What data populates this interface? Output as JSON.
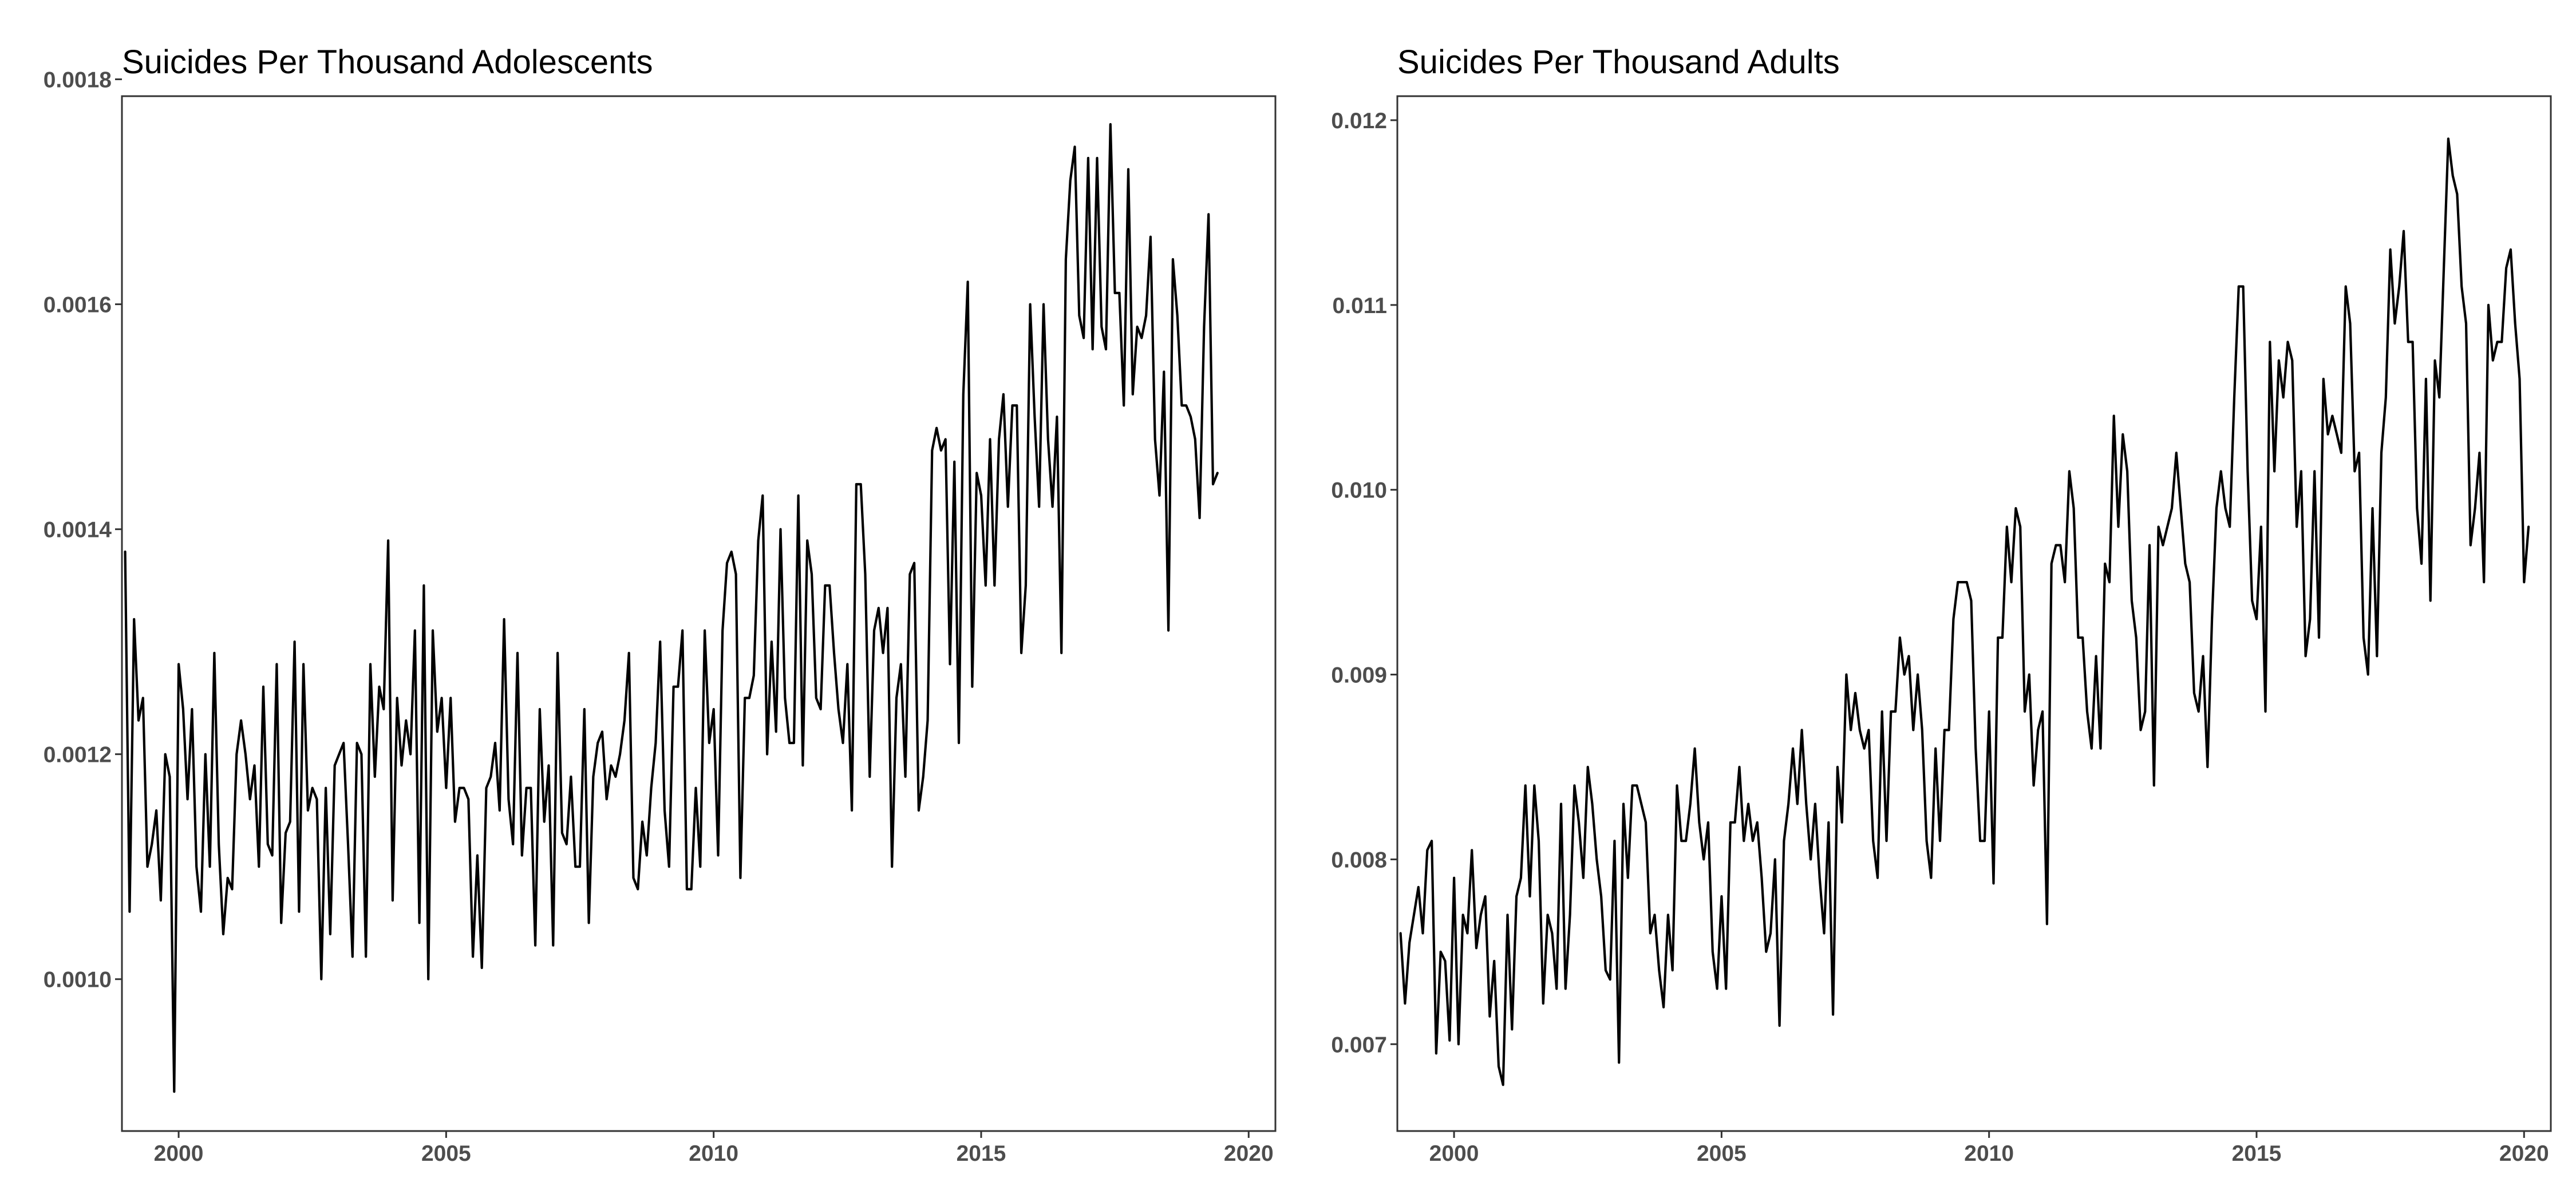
{
  "chart_data": [
    {
      "type": "line",
      "title": "Suicides Per Thousand Adolescents",
      "xlabel": "",
      "ylabel": "",
      "xlim": [
        1998.94,
        2020.5
      ],
      "ylim": [
        0.000865,
        0.001785
      ],
      "x_ticks": [
        2000,
        2005,
        2010,
        2015,
        2020
      ],
      "x_tick_labels": [
        "2000",
        "2005",
        "2010",
        "2015",
        "2020"
      ],
      "y_ticks": [
        0.001,
        0.0012,
        0.0014,
        0.0016,
        0.0018
      ],
      "y_tick_labels": [
        "0.0010",
        "0.0012",
        "0.0014",
        "0.0016",
        "0.0018"
      ],
      "grid": false,
      "legend": "none",
      "series": [
        {
          "x_start": 1999.0,
          "x_step": 0.0833333,
          "values": [
            0.00138,
            0.00106,
            0.00132,
            0.00123,
            0.00125,
            0.0011,
            0.00112,
            0.00115,
            0.00107,
            0.0012,
            0.00118,
            0.0009,
            0.00128,
            0.00124,
            0.00116,
            0.00124,
            0.0011,
            0.00106,
            0.0012,
            0.0011,
            0.00129,
            0.00112,
            0.00104,
            0.00109,
            0.00108,
            0.0012,
            0.00123,
            0.0012,
            0.00116,
            0.00119,
            0.0011,
            0.00126,
            0.00112,
            0.00111,
            0.00128,
            0.00105,
            0.00113,
            0.00114,
            0.0013,
            0.00106,
            0.00128,
            0.00115,
            0.00117,
            0.00116,
            0.001,
            0.00117,
            0.00104,
            0.00119,
            0.0012,
            0.00121,
            0.00112,
            0.00102,
            0.00121,
            0.0012,
            0.00102,
            0.00128,
            0.00118,
            0.00126,
            0.00124,
            0.00139,
            0.00107,
            0.00125,
            0.00119,
            0.00123,
            0.0012,
            0.00131,
            0.00105,
            0.00135,
            0.001,
            0.00131,
            0.00122,
            0.00125,
            0.00117,
            0.00125,
            0.00114,
            0.00117,
            0.00117,
            0.00116,
            0.00102,
            0.00111,
            0.00101,
            0.00117,
            0.00118,
            0.00121,
            0.00115,
            0.00132,
            0.00116,
            0.00112,
            0.00129,
            0.00111,
            0.00117,
            0.00117,
            0.00103,
            0.00124,
            0.00114,
            0.00119,
            0.00103,
            0.00129,
            0.00113,
            0.00112,
            0.00118,
            0.0011,
            0.0011,
            0.00124,
            0.00105,
            0.00118,
            0.00121,
            0.00122,
            0.00116,
            0.00119,
            0.00118,
            0.0012,
            0.00123,
            0.00129,
            0.00109,
            0.00108,
            0.00114,
            0.00111,
            0.00117,
            0.00121,
            0.0013,
            0.00115,
            0.0011,
            0.00126,
            0.00126,
            0.00131,
            0.00108,
            0.00108,
            0.00117,
            0.0011,
            0.00131,
            0.00121,
            0.00124,
            0.00111,
            0.00131,
            0.00137,
            0.00138,
            0.00136,
            0.00109,
            0.00125,
            0.00125,
            0.00127,
            0.00139,
            0.00143,
            0.0012,
            0.0013,
            0.00122,
            0.0014,
            0.00125,
            0.00121,
            0.00121,
            0.00143,
            0.00119,
            0.00139,
            0.00136,
            0.00125,
            0.00124,
            0.00135,
            0.00135,
            0.00129,
            0.00124,
            0.00121,
            0.00128,
            0.00115,
            0.00144,
            0.00144,
            0.00136,
            0.00118,
            0.00131,
            0.00133,
            0.00129,
            0.00133,
            0.0011,
            0.00125,
            0.00128,
            0.00118,
            0.00136,
            0.00137,
            0.00115,
            0.00118,
            0.00123,
            0.00147,
            0.00149,
            0.00147,
            0.00148,
            0.00128,
            0.00146,
            0.00121,
            0.00152,
            0.00162,
            0.00126,
            0.00145,
            0.00143,
            0.00135,
            0.00148,
            0.00135,
            0.00148,
            0.00152,
            0.00142,
            0.00151,
            0.00151,
            0.00129,
            0.00135,
            0.0016,
            0.0015,
            0.00142,
            0.0016,
            0.00148,
            0.00142,
            0.0015,
            0.00129,
            0.00164,
            0.00171,
            0.00174,
            0.00159,
            0.00157,
            0.00173,
            0.00156,
            0.00173,
            0.00158,
            0.00156,
            0.00176,
            0.00161,
            0.00161,
            0.00151,
            0.00172,
            0.00152,
            0.00158,
            0.00157,
            0.00159,
            0.00166,
            0.00148,
            0.00143,
            0.00154,
            0.00131,
            0.00164,
            0.00159,
            0.00151,
            0.00151,
            0.0015,
            0.00148,
            0.00141,
            0.00158,
            0.00168,
            0.00144,
            0.00145
          ]
        }
      ]
    },
    {
      "type": "line",
      "title": "Suicides Per Thousand Adults",
      "xlabel": "",
      "ylabel": "",
      "xlim": [
        1998.94,
        2020.5
      ],
      "ylim": [
        0.00653,
        0.01213
      ],
      "x_ticks": [
        2000,
        2005,
        2010,
        2015,
        2020
      ],
      "x_tick_labels": [
        "2000",
        "2005",
        "2010",
        "2015",
        "2020"
      ],
      "y_ticks": [
        0.007,
        0.008,
        0.009,
        0.01,
        0.011,
        0.012
      ],
      "y_tick_labels": [
        "0.007",
        "0.008",
        "0.009",
        "0.010",
        "0.011",
        "0.012"
      ],
      "grid": false,
      "legend": "none",
      "series": [
        {
          "x_start": 1999.0,
          "x_step": 0.0833333,
          "values": [
            0.0076,
            0.00722,
            0.00755,
            0.0077,
            0.00785,
            0.0076,
            0.00805,
            0.0081,
            0.00695,
            0.0075,
            0.00745,
            0.00702,
            0.0079,
            0.007,
            0.0077,
            0.0076,
            0.00805,
            0.00752,
            0.0077,
            0.0078,
            0.00715,
            0.00745,
            0.00688,
            0.00678,
            0.0077,
            0.00708,
            0.0078,
            0.0079,
            0.0084,
            0.0078,
            0.0084,
            0.0081,
            0.00722,
            0.0077,
            0.0076,
            0.0073,
            0.0083,
            0.0073,
            0.0077,
            0.0084,
            0.0082,
            0.0079,
            0.0085,
            0.0083,
            0.008,
            0.0078,
            0.0074,
            0.00735,
            0.0081,
            0.0069,
            0.0083,
            0.0079,
            0.0084,
            0.0084,
            0.0083,
            0.0082,
            0.0076,
            0.0077,
            0.0074,
            0.0072,
            0.0077,
            0.0074,
            0.0084,
            0.0081,
            0.0081,
            0.0083,
            0.0086,
            0.0082,
            0.008,
            0.0082,
            0.0075,
            0.0073,
            0.0078,
            0.0073,
            0.0082,
            0.0082,
            0.0085,
            0.0081,
            0.0083,
            0.0081,
            0.0082,
            0.0079,
            0.0075,
            0.0076,
            0.008,
            0.0071,
            0.0081,
            0.0083,
            0.0086,
            0.0083,
            0.0087,
            0.0083,
            0.008,
            0.0083,
            0.0079,
            0.0076,
            0.0082,
            0.00716,
            0.0085,
            0.0082,
            0.009,
            0.0087,
            0.0089,
            0.0087,
            0.0086,
            0.0087,
            0.0081,
            0.0079,
            0.0088,
            0.0081,
            0.0088,
            0.0088,
            0.0092,
            0.009,
            0.0091,
            0.0087,
            0.009,
            0.0087,
            0.0081,
            0.0079,
            0.0086,
            0.0081,
            0.0087,
            0.0087,
            0.0093,
            0.0095,
            0.0095,
            0.0095,
            0.0094,
            0.0086,
            0.0081,
            0.0081,
            0.0088,
            0.00787,
            0.0092,
            0.0092,
            0.0098,
            0.0095,
            0.0099,
            0.0098,
            0.0088,
            0.009,
            0.0084,
            0.0087,
            0.0088,
            0.00765,
            0.0096,
            0.0097,
            0.0097,
            0.0095,
            0.0101,
            0.0099,
            0.0092,
            0.0092,
            0.0088,
            0.0086,
            0.0091,
            0.0086,
            0.0096,
            0.0095,
            0.0104,
            0.0098,
            0.0103,
            0.0101,
            0.0094,
            0.0092,
            0.0087,
            0.0088,
            0.0097,
            0.0084,
            0.0098,
            0.0097,
            0.0098,
            0.0099,
            0.0102,
            0.0099,
            0.0096,
            0.0095,
            0.0089,
            0.0088,
            0.0091,
            0.0085,
            0.0093,
            0.0099,
            0.0101,
            0.0099,
            0.0098,
            0.0105,
            0.0111,
            0.0111,
            0.0101,
            0.0094,
            0.0093,
            0.0098,
            0.0088,
            0.0108,
            0.0101,
            0.0107,
            0.0105,
            0.0108,
            0.0107,
            0.0098,
            0.0101,
            0.0091,
            0.0093,
            0.0101,
            0.0092,
            0.0106,
            0.0103,
            0.0104,
            0.0103,
            0.0102,
            0.0111,
            0.0109,
            0.0101,
            0.0102,
            0.0092,
            0.009,
            0.0099,
            0.0091,
            0.0102,
            0.0105,
            0.0113,
            0.0109,
            0.0111,
            0.0114,
            0.0108,
            0.0108,
            0.0099,
            0.0096,
            0.0106,
            0.0094,
            0.0107,
            0.0105,
            0.0112,
            0.0119,
            0.0117,
            0.0116,
            0.0111,
            0.0109,
            0.0097,
            0.0099,
            0.0102,
            0.0095,
            0.011,
            0.0107,
            0.0108,
            0.0108,
            0.0112,
            0.0113,
            0.0109,
            0.0106,
            0.0095,
            0.0098
          ]
        }
      ]
    }
  ]
}
